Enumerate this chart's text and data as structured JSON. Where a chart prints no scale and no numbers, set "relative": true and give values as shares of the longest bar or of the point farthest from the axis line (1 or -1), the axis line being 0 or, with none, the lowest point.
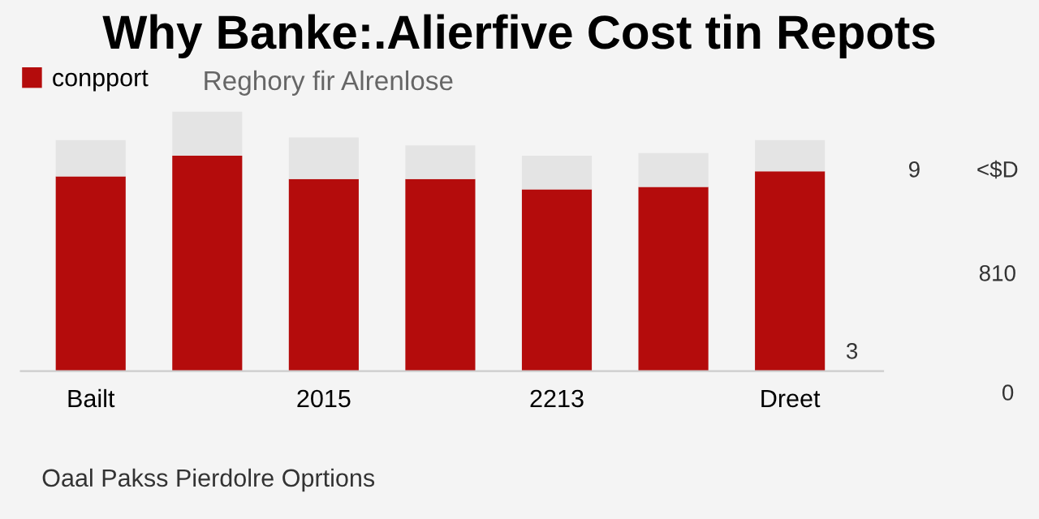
{
  "chart_data": {
    "type": "bar",
    "title": "Why Banke:.Alierfive Cost tin Repots",
    "subtitle": "Reghory fir Alrenlose",
    "categories": [
      "Bailt",
      null,
      "2015",
      null,
      "2213",
      null,
      "Dreet"
    ],
    "relative": true,
    "stacked": true,
    "legend": "top left",
    "tick_labels": "x",
    "series": [
      {
        "name": "conpport",
        "color": "#b40c0c",
        "values": [
          0.75,
          0.83,
          0.74,
          0.74,
          0.7,
          0.71,
          0.77
        ]
      },
      {
        "color": "#e4e4e4",
        "values": [
          0.14,
          0.17,
          0.16,
          0.13,
          0.13,
          0.13,
          0.12
        ]
      }
    ],
    "annotations": [
      "9",
      "<$D",
      "810",
      "3",
      "0",
      "Oaal Pakss Pierdolre Oprtions"
    ]
  }
}
